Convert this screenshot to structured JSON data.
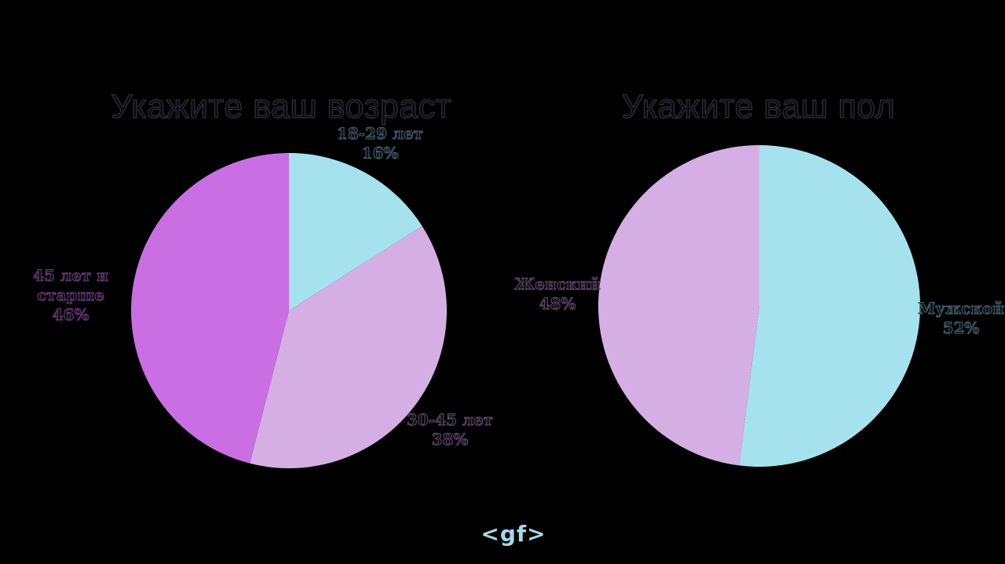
{
  "page": {
    "background_color": "#000000",
    "title_text_color": "#07070b",
    "title_outline_color": "#32323c",
    "label_text_color": "#0b0e15",
    "footer": {
      "logo_text": "<gf>",
      "logo_color": "#a8d6eb"
    }
  },
  "chart_data": [
    {
      "type": "pie",
      "title": "Укажите ваш возраст",
      "start_angle_deg": 0,
      "direction": "clockwise",
      "legend_position": "none",
      "label_style": "outside, two lines (category + percent), serif",
      "slices": [
        {
          "label": "18-29 лет",
          "value": 16,
          "percent_label": "16%",
          "color": "#a5e2ee",
          "label_outline": "#46626f"
        },
        {
          "label": "30-45 лет",
          "value": 38,
          "percent_label": "38%",
          "color": "#d5afe3",
          "label_outline": "#64466b"
        },
        {
          "label": "45 лет и старше",
          "value": 46,
          "percent_label": "46%",
          "color": "#c96fe3",
          "label_outline": "#6e3a7c"
        }
      ]
    },
    {
      "type": "pie",
      "title": "Укажите ваш пол",
      "start_angle_deg": 0,
      "direction": "clockwise",
      "legend_position": "none",
      "label_style": "outside, two lines (category + percent), serif",
      "slices": [
        {
          "label": "Мужской",
          "value": 52,
          "percent_label": "52%",
          "color": "#a5e2ee",
          "label_outline": "#46626f"
        },
        {
          "label": "Женский",
          "value": 48,
          "percent_label": "48%",
          "color": "#d5afe3",
          "label_outline": "#64466b"
        }
      ]
    }
  ]
}
